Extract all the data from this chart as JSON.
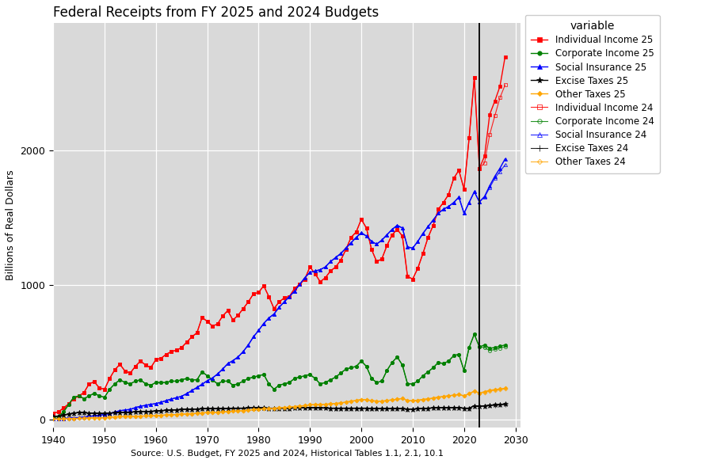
{
  "title": "Federal Receipts from FY 2025 and 2024 Budgets",
  "xlabel": "Source: U.S. Budget, FY 2025 and 2024, Historical Tables 1.1, 2.1, 10.1",
  "ylabel": "Billions of Real Dollars",
  "background_color": "#D9D9D9",
  "vline_x": 2023,
  "xlim": [
    1940,
    2031
  ],
  "ylim": [
    -60,
    2950
  ],
  "yticks": [
    0,
    1000,
    2000
  ],
  "xticks": [
    1940,
    1950,
    1960,
    1970,
    1980,
    1990,
    2000,
    2010,
    2020,
    2030
  ],
  "years_historical": [
    1940,
    1941,
    1942,
    1943,
    1944,
    1945,
    1946,
    1947,
    1948,
    1949,
    1950,
    1951,
    1952,
    1953,
    1954,
    1955,
    1956,
    1957,
    1958,
    1959,
    1960,
    1961,
    1962,
    1963,
    1964,
    1965,
    1966,
    1967,
    1968,
    1969,
    1970,
    1971,
    1972,
    1973,
    1974,
    1975,
    1976,
    1977,
    1978,
    1979,
    1980,
    1981,
    1982,
    1983,
    1984,
    1985,
    1986,
    1987,
    1988,
    1989,
    1990,
    1991,
    1992,
    1993,
    1994,
    1995,
    1996,
    1997,
    1998,
    1999,
    2000,
    2001,
    2002,
    2003,
    2004,
    2005,
    2006,
    2007,
    2008,
    2009,
    2010,
    2011,
    2012,
    2013,
    2014,
    2015,
    2016,
    2017,
    2018,
    2019,
    2020,
    2021,
    2022,
    2023
  ],
  "indiv_hist": [
    47,
    55,
    85,
    115,
    155,
    175,
    200,
    265,
    280,
    235,
    225,
    305,
    370,
    410,
    360,
    345,
    395,
    435,
    405,
    385,
    445,
    455,
    485,
    505,
    515,
    535,
    575,
    615,
    645,
    760,
    730,
    695,
    710,
    770,
    810,
    740,
    775,
    825,
    875,
    935,
    945,
    995,
    915,
    825,
    875,
    905,
    915,
    975,
    1005,
    1045,
    1135,
    1085,
    1025,
    1055,
    1105,
    1135,
    1185,
    1265,
    1355,
    1395,
    1490,
    1425,
    1265,
    1175,
    1195,
    1295,
    1375,
    1415,
    1365,
    1065,
    1045,
    1125,
    1235,
    1355,
    1445,
    1565,
    1615,
    1675,
    1795,
    1855,
    1715,
    2095,
    2545,
    1870
  ],
  "corp_hist": [
    14,
    22,
    55,
    110,
    165,
    175,
    155,
    175,
    195,
    175,
    165,
    225,
    265,
    295,
    275,
    265,
    285,
    295,
    265,
    255,
    275,
    275,
    275,
    285,
    285,
    295,
    305,
    295,
    295,
    355,
    325,
    295,
    265,
    285,
    285,
    255,
    265,
    285,
    305,
    315,
    325,
    335,
    265,
    225,
    255,
    265,
    275,
    305,
    315,
    325,
    335,
    305,
    265,
    275,
    295,
    315,
    345,
    375,
    385,
    395,
    435,
    395,
    305,
    275,
    285,
    365,
    425,
    465,
    405,
    265,
    265,
    285,
    325,
    355,
    385,
    425,
    415,
    435,
    475,
    485,
    365,
    535,
    635,
    540
  ],
  "social_hist": [
    4,
    5,
    7,
    10,
    12,
    14,
    18,
    22,
    28,
    32,
    36,
    45,
    55,
    65,
    70,
    75,
    88,
    98,
    105,
    112,
    118,
    128,
    140,
    152,
    162,
    172,
    192,
    215,
    238,
    262,
    288,
    308,
    338,
    375,
    415,
    438,
    465,
    505,
    555,
    615,
    662,
    715,
    755,
    785,
    835,
    875,
    915,
    955,
    1005,
    1055,
    1095,
    1105,
    1115,
    1135,
    1175,
    1205,
    1235,
    1275,
    1315,
    1355,
    1390,
    1365,
    1325,
    1305,
    1335,
    1375,
    1415,
    1445,
    1425,
    1285,
    1275,
    1325,
    1385,
    1435,
    1485,
    1535,
    1565,
    1585,
    1615,
    1655,
    1535,
    1615,
    1695,
    1620
  ],
  "excise_hist": [
    22,
    24,
    32,
    40,
    47,
    52,
    50,
    48,
    46,
    44,
    44,
    47,
    50,
    52,
    52,
    54,
    57,
    60,
    60,
    60,
    64,
    66,
    68,
    70,
    72,
    74,
    77,
    77,
    77,
    80,
    80,
    80,
    80,
    80,
    82,
    84,
    84,
    84,
    86,
    86,
    87,
    87,
    84,
    84,
    84,
    84,
    84,
    86,
    87,
    88,
    88,
    87,
    85,
    85,
    84,
    84,
    84,
    84,
    84,
    84,
    84,
    84,
    82,
    82,
    80,
    80,
    82,
    82,
    80,
    77,
    77,
    80,
    82,
    84,
    86,
    88,
    88,
    88,
    88,
    88,
    84,
    84,
    102,
    97
  ],
  "other_hist": [
    3,
    4,
    5,
    6,
    7,
    8,
    9,
    11,
    13,
    13,
    13,
    16,
    19,
    21,
    21,
    21,
    23,
    25,
    26,
    26,
    29,
    31,
    33,
    35,
    37,
    39,
    41,
    43,
    45,
    49,
    51,
    51,
    53,
    56,
    59,
    61,
    63,
    66,
    69,
    73,
    76,
    79,
    81,
    83,
    86,
    89,
    91,
    96,
    99,
    103,
    109,
    111,
    111,
    113,
    116,
    119,
    123,
    129,
    136,
    141,
    149,
    146,
    141,
    136,
    136,
    141,
    146,
    151,
    156,
    141,
    139,
    143,
    149,
    153,
    159,
    166,
    171,
    176,
    181,
    186,
    176,
    191,
    211,
    196
  ],
  "years_proj": [
    2024,
    2025,
    2026,
    2027,
    2028
  ],
  "indiv_proj_25": [
    1960,
    2270,
    2370,
    2480,
    2700
  ],
  "corp_proj_25": [
    555,
    530,
    535,
    545,
    555
  ],
  "social_proj_25": [
    1660,
    1740,
    1810,
    1870,
    1940
  ],
  "excise_proj_25": [
    102,
    106,
    109,
    112,
    115
  ],
  "other_proj_25": [
    207,
    217,
    222,
    227,
    232
  ],
  "indiv_proj_24": [
    1910,
    2120,
    2260,
    2395,
    2490
  ],
  "corp_proj_24": [
    535,
    512,
    522,
    532,
    542
  ],
  "social_proj_24": [
    1655,
    1725,
    1795,
    1845,
    1895
  ],
  "excise_proj_24": [
    100,
    104,
    107,
    110,
    112
  ],
  "other_proj_24": [
    202,
    212,
    218,
    222,
    227
  ],
  "color_red": "#FF0000",
  "color_green": "#008000",
  "color_blue": "#0000FF",
  "color_black": "#000000",
  "color_gold": "#FFA500",
  "legend_title": "variable",
  "ms_filled": 3.0,
  "ms_open": 3.0,
  "lw_filled": 1.0,
  "lw_open": 0.8
}
